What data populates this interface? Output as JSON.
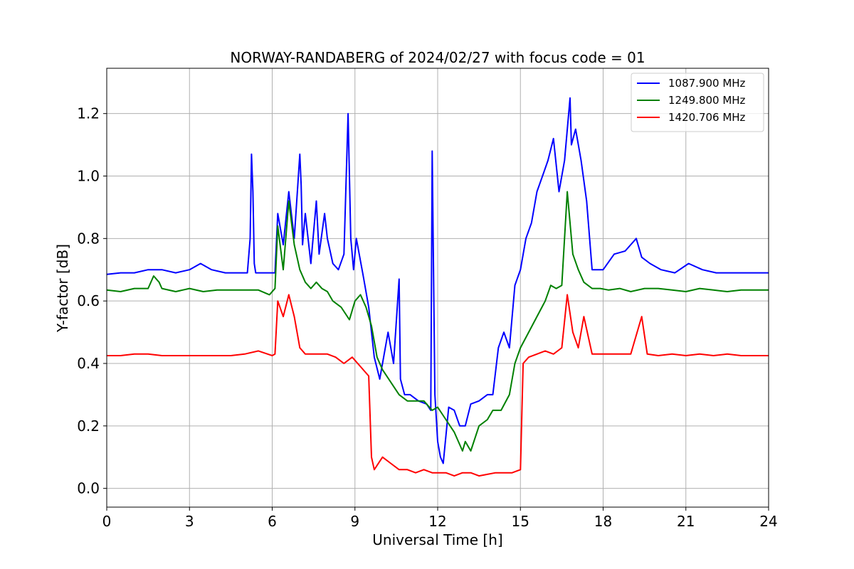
{
  "chart_data": {
    "type": "line",
    "title": "NORWAY-RANDABERG of 2024/02/27 with focus code = 01",
    "xlabel": "Universal Time [h]",
    "ylabel": "Y-factor [dB]",
    "xlim": [
      0,
      24
    ],
    "ylim": [
      -0.06,
      1.345
    ],
    "xticks": [
      0,
      3,
      6,
      9,
      12,
      15,
      18,
      21,
      24
    ],
    "xtick_labels": [
      "0",
      "3",
      "6",
      "9",
      "12",
      "15",
      "18",
      "21",
      "24"
    ],
    "yticks": [
      0.0,
      0.2,
      0.4,
      0.6,
      0.8,
      1.0,
      1.2
    ],
    "ytick_labels": [
      "0.0",
      "0.2",
      "0.4",
      "0.6",
      "0.8",
      "1.0",
      "1.2"
    ],
    "grid": true,
    "legend_position": "top-right",
    "series": [
      {
        "name": "1087.900 MHz",
        "color": "#0000ff",
        "x": [
          0,
          0.5,
          1.0,
          1.5,
          2.0,
          2.5,
          3.0,
          3.4,
          3.8,
          4.3,
          4.8,
          5.1,
          5.2,
          5.25,
          5.3,
          5.35,
          5.4,
          5.5,
          6.0,
          6.1,
          6.2,
          6.4,
          6.6,
          6.8,
          7.0,
          7.05,
          7.1,
          7.2,
          7.4,
          7.6,
          7.7,
          7.9,
          8.0,
          8.2,
          8.4,
          8.6,
          8.75,
          8.85,
          8.95,
          9.05,
          9.3,
          9.5,
          9.7,
          9.9,
          10.2,
          10.4,
          10.6,
          10.65,
          10.8,
          11.0,
          11.3,
          11.6,
          11.75,
          11.8,
          11.9,
          12.0,
          12.1,
          12.2,
          12.4,
          12.6,
          12.8,
          13.0,
          13.2,
          13.5,
          13.8,
          14.0,
          14.2,
          14.4,
          14.6,
          14.8,
          15.0,
          15.2,
          15.4,
          15.6,
          15.8,
          16.0,
          16.2,
          16.4,
          16.6,
          16.8,
          16.85,
          17.0,
          17.2,
          17.4,
          17.6,
          17.8,
          18.0,
          18.4,
          18.8,
          19.2,
          19.4,
          19.7,
          20.1,
          20.6,
          21.1,
          21.6,
          22.1,
          22.6,
          23.1,
          23.6,
          24.0
        ],
        "y": [
          0.685,
          0.69,
          0.69,
          0.7,
          0.7,
          0.69,
          0.7,
          0.72,
          0.7,
          0.69,
          0.69,
          0.69,
          0.8,
          1.07,
          0.95,
          0.72,
          0.69,
          0.69,
          0.69,
          0.69,
          0.88,
          0.78,
          0.95,
          0.8,
          1.07,
          0.97,
          0.78,
          0.88,
          0.72,
          0.92,
          0.75,
          0.88,
          0.8,
          0.72,
          0.7,
          0.75,
          1.2,
          0.8,
          0.7,
          0.8,
          0.68,
          0.58,
          0.42,
          0.35,
          0.5,
          0.4,
          0.67,
          0.35,
          0.3,
          0.3,
          0.28,
          0.27,
          0.25,
          1.08,
          0.3,
          0.15,
          0.1,
          0.08,
          0.26,
          0.25,
          0.2,
          0.2,
          0.27,
          0.28,
          0.3,
          0.3,
          0.45,
          0.5,
          0.45,
          0.65,
          0.7,
          0.8,
          0.85,
          0.95,
          1.0,
          1.05,
          1.12,
          0.95,
          1.05,
          1.25,
          1.1,
          1.15,
          1.05,
          0.92,
          0.7,
          0.7,
          0.7,
          0.75,
          0.76,
          0.8,
          0.74,
          0.72,
          0.7,
          0.69,
          0.72,
          0.7,
          0.69,
          0.69,
          0.69,
          0.69,
          0.69
        ]
      },
      {
        "name": "1249.800 MHz",
        "color": "#008000",
        "x": [
          0,
          0.5,
          1.0,
          1.5,
          1.7,
          1.9,
          2.0,
          2.5,
          3.0,
          3.5,
          4.0,
          4.5,
          5.0,
          5.5,
          5.9,
          6.1,
          6.2,
          6.4,
          6.6,
          6.8,
          7.0,
          7.2,
          7.4,
          7.6,
          7.8,
          8.0,
          8.2,
          8.5,
          8.8,
          9.0,
          9.2,
          9.4,
          9.6,
          9.8,
          10.0,
          10.3,
          10.6,
          10.9,
          11.2,
          11.5,
          11.8,
          12.0,
          12.3,
          12.6,
          12.9,
          13.0,
          13.2,
          13.5,
          13.8,
          14.0,
          14.3,
          14.6,
          14.8,
          15.0,
          15.3,
          15.6,
          15.9,
          16.1,
          16.3,
          16.5,
          16.7,
          16.9,
          17.1,
          17.3,
          17.6,
          17.9,
          18.2,
          18.6,
          19.0,
          19.5,
          20.0,
          20.5,
          21.0,
          21.5,
          22.0,
          22.5,
          23.0,
          23.5,
          24.0
        ],
        "y": [
          0.635,
          0.63,
          0.64,
          0.64,
          0.68,
          0.66,
          0.64,
          0.63,
          0.64,
          0.63,
          0.635,
          0.635,
          0.635,
          0.635,
          0.62,
          0.64,
          0.84,
          0.7,
          0.92,
          0.78,
          0.7,
          0.66,
          0.64,
          0.66,
          0.64,
          0.63,
          0.6,
          0.58,
          0.54,
          0.6,
          0.62,
          0.58,
          0.52,
          0.42,
          0.38,
          0.34,
          0.3,
          0.28,
          0.28,
          0.28,
          0.25,
          0.26,
          0.22,
          0.18,
          0.12,
          0.15,
          0.12,
          0.2,
          0.22,
          0.25,
          0.25,
          0.3,
          0.4,
          0.45,
          0.5,
          0.55,
          0.6,
          0.65,
          0.64,
          0.65,
          0.95,
          0.75,
          0.7,
          0.66,
          0.64,
          0.64,
          0.635,
          0.64,
          0.63,
          0.64,
          0.64,
          0.635,
          0.63,
          0.64,
          0.635,
          0.63,
          0.635,
          0.635,
          0.635
        ]
      },
      {
        "name": "1420.706 MHz",
        "color": "#ff0000",
        "x": [
          0,
          0.5,
          1.0,
          1.5,
          2.0,
          2.5,
          3.0,
          3.5,
          4.0,
          4.5,
          5.0,
          5.5,
          6.0,
          6.1,
          6.2,
          6.4,
          6.6,
          6.8,
          7.0,
          7.2,
          7.5,
          7.8,
          8.0,
          8.3,
          8.6,
          8.9,
          9.2,
          9.5,
          9.6,
          9.7,
          10.0,
          10.3,
          10.6,
          10.9,
          11.2,
          11.5,
          11.8,
          12.0,
          12.3,
          12.6,
          12.9,
          13.2,
          13.5,
          13.8,
          14.1,
          14.4,
          14.7,
          15.0,
          15.1,
          15.3,
          15.6,
          15.9,
          16.2,
          16.5,
          16.7,
          16.9,
          17.1,
          17.3,
          17.6,
          17.9,
          18.2,
          18.6,
          19.0,
          19.4,
          19.6,
          20.0,
          20.5,
          21.0,
          21.5,
          22.0,
          22.5,
          23.0,
          23.5,
          24.0
        ],
        "y": [
          0.425,
          0.425,
          0.43,
          0.43,
          0.425,
          0.425,
          0.425,
          0.425,
          0.425,
          0.425,
          0.43,
          0.44,
          0.425,
          0.43,
          0.6,
          0.55,
          0.62,
          0.55,
          0.45,
          0.43,
          0.43,
          0.43,
          0.43,
          0.42,
          0.4,
          0.42,
          0.39,
          0.36,
          0.1,
          0.06,
          0.1,
          0.08,
          0.06,
          0.06,
          0.05,
          0.06,
          0.05,
          0.05,
          0.05,
          0.04,
          0.05,
          0.05,
          0.04,
          0.045,
          0.05,
          0.05,
          0.05,
          0.06,
          0.4,
          0.42,
          0.43,
          0.44,
          0.43,
          0.45,
          0.62,
          0.5,
          0.45,
          0.55,
          0.43,
          0.43,
          0.43,
          0.43,
          0.43,
          0.55,
          0.43,
          0.425,
          0.43,
          0.425,
          0.43,
          0.425,
          0.43,
          0.425,
          0.425,
          0.425
        ]
      }
    ]
  }
}
